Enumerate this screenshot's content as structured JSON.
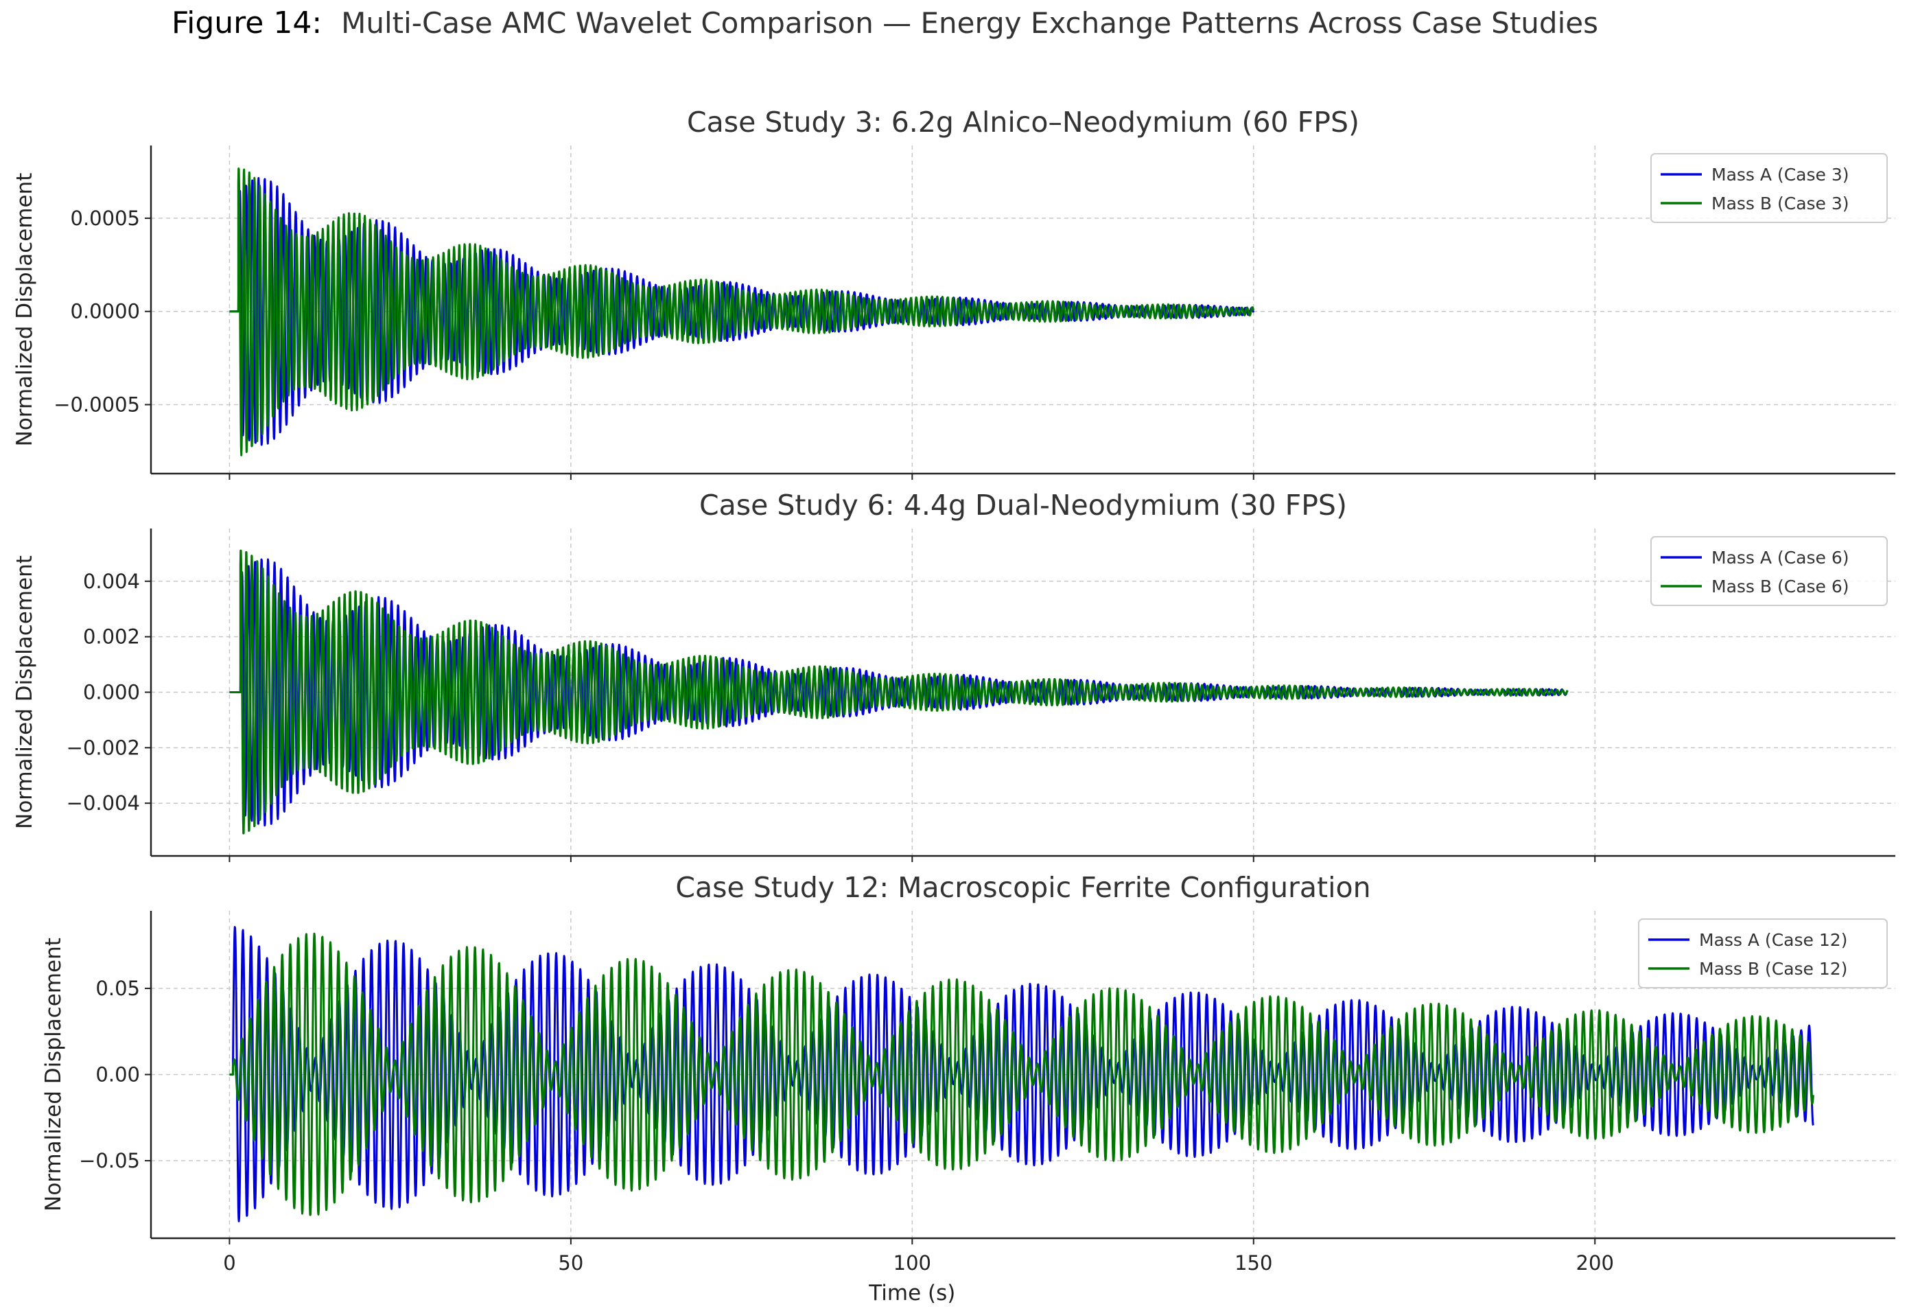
{
  "figure": {
    "number": "Figure 14:",
    "title": "Multi-Case AMC Wavelet Comparison — Energy Exchange Patterns Across Case Studies"
  },
  "chart_data": [
    {
      "type": "line",
      "title": "Case Study 3: 6.2g Alnico–Neodymium (60 FPS)",
      "xlabel": "",
      "ylabel": "Normalized Displacement",
      "xlim": [
        -11.5,
        244
      ],
      "ylim": [
        -0.00087,
        0.00089
      ],
      "xticks": [
        0,
        50,
        100,
        150,
        200
      ],
      "show_xtick_labels": false,
      "yticks": [
        -0.0005,
        0.0,
        0.0005
      ],
      "ytick_labels": [
        "−0.0005",
        "0.0000",
        "0.0005"
      ],
      "grid": true,
      "legend": "top-right",
      "signal": {
        "onset": 1.3,
        "end": 150,
        "amplitude": 0.00078,
        "decay_tau": 45,
        "freq_a": 1.1,
        "freq_b": 1.3,
        "beat_period": 0
      },
      "series": [
        {
          "name": "Mass A (Case 3)",
          "color": "#0000dd"
        },
        {
          "name": "Mass B (Case 3)",
          "color": "#007700"
        }
      ]
    },
    {
      "type": "line",
      "title": "Case Study 6: 4.4g Dual-Neodymium (30 FPS)",
      "xlabel": "",
      "ylabel": "Normalized Displacement",
      "xlim": [
        -11.5,
        244
      ],
      "ylim": [
        -0.0059,
        0.0059
      ],
      "xticks": [
        0,
        50,
        100,
        150,
        200
      ],
      "show_xtick_labels": false,
      "yticks": [
        -0.004,
        -0.002,
        0.0,
        0.002,
        0.004
      ],
      "ytick_labels": [
        "−0.004",
        "−0.002",
        "0.000",
        "0.002",
        "0.004"
      ],
      "grid": true,
      "legend": "top-right",
      "signal": {
        "onset": 1.6,
        "end": 196,
        "amplitude": 0.0052,
        "decay_tau": 50,
        "freq_a": 1.05,
        "freq_b": 1.25,
        "beat_period": 0
      },
      "series": [
        {
          "name": "Mass A (Case 6)",
          "color": "#0000dd"
        },
        {
          "name": "Mass B (Case 6)",
          "color": "#007700"
        }
      ]
    },
    {
      "type": "line",
      "title": "Case Study 12: Macroscopic Ferrite Configuration",
      "xlabel": "Time (s)",
      "ylabel": "Normalized Displacement",
      "xlim": [
        -11.5,
        244
      ],
      "ylim": [
        -0.095,
        0.095
      ],
      "xticks": [
        0,
        50,
        100,
        150,
        200
      ],
      "show_xtick_labels": true,
      "yticks": [
        -0.05,
        0.0,
        0.05
      ],
      "ytick_labels": [
        "−0.05",
        "0.00",
        "0.05"
      ],
      "grid": true,
      "legend": "top-right",
      "signal": {
        "onset": 0.5,
        "end": 232,
        "amplitude": 0.086,
        "decay_tau": 240,
        "freq_a": 0.85,
        "freq_b": 0.85,
        "beat_period": 23.5
      },
      "series": [
        {
          "name": "Mass A (Case 12)",
          "color": "#0000dd"
        },
        {
          "name": "Mass B (Case 12)",
          "color": "#007700"
        }
      ]
    }
  ]
}
